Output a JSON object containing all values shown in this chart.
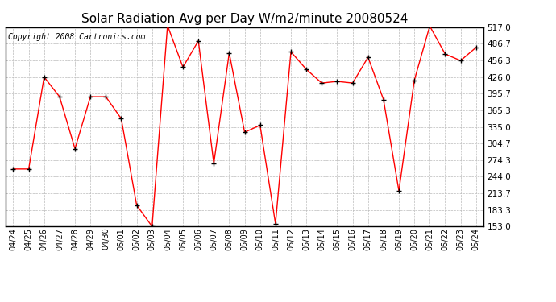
{
  "title": "Solar Radiation Avg per Day W/m2/minute 20080524",
  "copyright": "Copyright 2008 Cartronics.com",
  "dates": [
    "04/24",
    "04/25",
    "04/26",
    "04/27",
    "04/28",
    "04/29",
    "04/30",
    "05/01",
    "05/02",
    "05/03",
    "05/04",
    "05/05",
    "05/06",
    "05/07",
    "05/08",
    "05/09",
    "05/10",
    "05/11",
    "05/12",
    "05/13",
    "05/14",
    "05/15",
    "05/16",
    "05/17",
    "05/18",
    "05/19",
    "05/20",
    "05/21",
    "05/22",
    "05/23",
    "05/24"
  ],
  "values": [
    258,
    258,
    426,
    390,
    295,
    390,
    390,
    350,
    192,
    153,
    520,
    444,
    492,
    268,
    470,
    325,
    338,
    158,
    472,
    440,
    415,
    418,
    415,
    462,
    385,
    218,
    420,
    519,
    468,
    456,
    480
  ],
  "ylim": [
    153.0,
    517.0
  ],
  "yticks": [
    153.0,
    183.3,
    213.7,
    244.0,
    274.3,
    304.7,
    335.0,
    365.3,
    395.7,
    426.0,
    456.3,
    486.7,
    517.0
  ],
  "line_color": "#ff0000",
  "marker_color": "#000000",
  "bg_color": "#ffffff",
  "grid_color": "#bbbbbb",
  "title_fontsize": 11,
  "copyright_fontsize": 7
}
